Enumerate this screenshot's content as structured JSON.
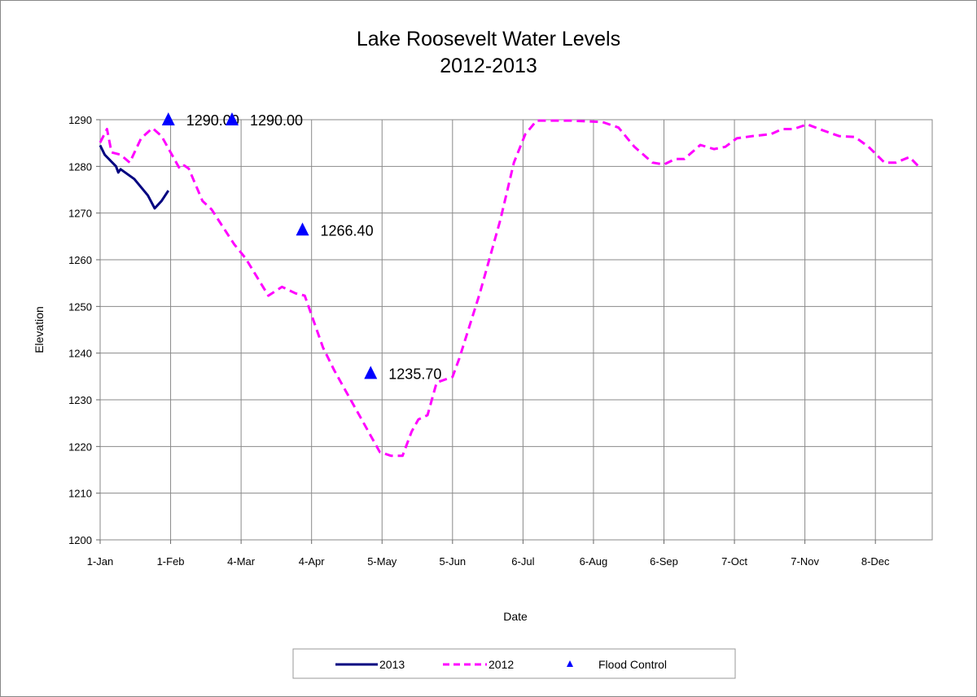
{
  "chart_data": {
    "type": "line",
    "title": "Lake Roosevelt Water Levels",
    "subtitle": "2012-2013",
    "xlabel": "Date",
    "ylabel": "Elevation",
    "ylim": [
      1200,
      1290
    ],
    "yticks": [
      1200,
      1210,
      1220,
      1230,
      1240,
      1250,
      1260,
      1270,
      1280,
      1290
    ],
    "xlim": [
      "1-Jan",
      "31-Dec"
    ],
    "xticks": [
      "1-Jan",
      "1-Feb",
      "4-Mar",
      "4-Apr",
      "5-May",
      "5-Jun",
      "6-Jul",
      "6-Aug",
      "6-Sep",
      "7-Oct",
      "7-Nov",
      "8-Dec"
    ],
    "grid": true,
    "legend": "bottom",
    "series": [
      {
        "name": "2013",
        "color": "#000080",
        "style": "solid",
        "x": [
          "1-Jan",
          "3-Jan",
          "8-Jan",
          "9-Jan",
          "10-Jan",
          "16-Jan",
          "22-Jan",
          "25-Jan",
          "28-Jan",
          "31-Jan"
        ],
        "y": [
          1284.5,
          1282.5,
          1280,
          1278.7,
          1279.4,
          1277.3,
          1273.8,
          1271,
          1272.6,
          1274.8
        ]
      },
      {
        "name": "2012",
        "color": "#ff00ff",
        "style": "dashed",
        "x": [
          "1-Jan",
          "4-Jan",
          "6-Jan",
          "10-Jan",
          "14-Jan",
          "19-Jan",
          "24-Jan",
          "28-Jan",
          "5-Feb",
          "7-Feb",
          "9-Feb",
          "15-Feb",
          "19-Feb",
          "1-Mar",
          "6-Mar",
          "16-Mar",
          "22-Mar",
          "28-Mar",
          "1-Apr",
          "9-Apr",
          "14-Apr",
          "19-Apr",
          "25-Apr",
          "30-Apr",
          "4-May",
          "9-May",
          "14-May",
          "18-May",
          "21-May",
          "25-May",
          "29-May",
          "5-Jun",
          "8-Jun",
          "17-Jun",
          "26-Jun",
          "2-Jul",
          "7-Jul",
          "12-Jul",
          "27-Jul",
          "10-Aug",
          "17-Aug",
          "24-Aug",
          "1-Sep",
          "6-Sep",
          "11-Sep",
          "15-Sep",
          "22-Sep",
          "28-Sep",
          "3-Oct",
          "8-Oct",
          "15-Oct",
          "23-Oct",
          "28-Oct",
          "2-Nov",
          "8-Nov",
          "15-Nov",
          "22-Nov",
          "29-Nov",
          "5-Dec",
          "12-Dec",
          "17-Dec",
          "23-Dec",
          "28-Dec"
        ],
        "y": [
          1285.1,
          1288,
          1283,
          1282.5,
          1280.8,
          1286,
          1288.2,
          1286.5,
          1279.5,
          1280.2,
          1279.5,
          1272.6,
          1270.8,
          1263.3,
          1260.3,
          1252.3,
          1254.2,
          1252.8,
          1252.3,
          1241.2,
          1236.3,
          1231.9,
          1226.7,
          1222.3,
          1218.8,
          1218,
          1218,
          1223.2,
          1225.8,
          1226.7,
          1233.7,
          1234.9,
          1238.9,
          1252.8,
          1268.5,
          1280.8,
          1286.9,
          1289.8,
          1289.8,
          1289.5,
          1288.3,
          1284.2,
          1280.8,
          1280.4,
          1281.6,
          1281.6,
          1284.6,
          1283.7,
          1284.2,
          1286,
          1286.5,
          1286.9,
          1288,
          1288,
          1289,
          1287.7,
          1286.5,
          1286.3,
          1284.2,
          1280.8,
          1280.8,
          1282,
          1279.5
        ]
      },
      {
        "name": "Flood Control",
        "color": "#0000ff",
        "style": "marker-triangle",
        "x": [
          "31-Jan",
          "28-Feb",
          "31-Mar",
          "30-Apr"
        ],
        "y": [
          1290.0,
          1290.0,
          1266.4,
          1235.7
        ],
        "labels": [
          "1290.00",
          "1290.00",
          "1266.40",
          "1235.70"
        ]
      }
    ]
  }
}
